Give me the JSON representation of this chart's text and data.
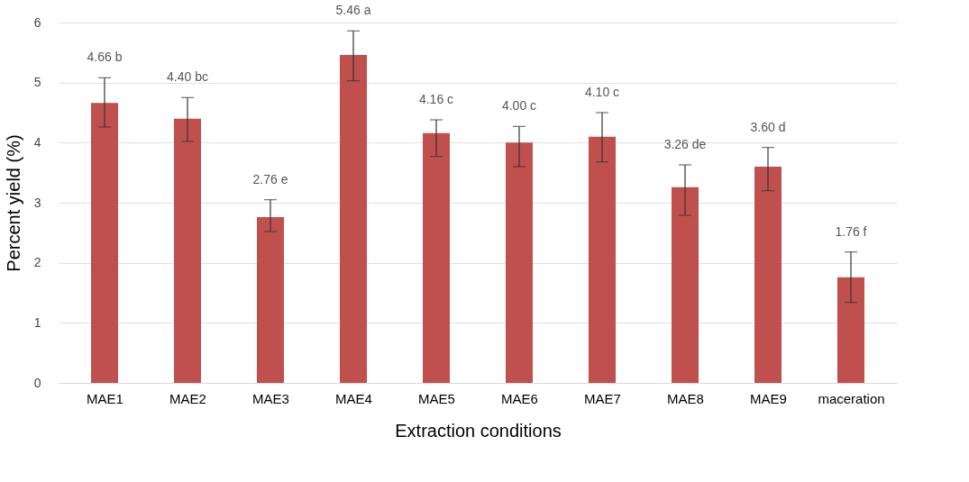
{
  "chart_data": {
    "type": "bar",
    "xlabel": "Extraction conditions",
    "ylabel": "Percent yield (%)",
    "categories": [
      "MAE1",
      "MAE2",
      "MAE3",
      "MAE4",
      "MAE5",
      "MAE6",
      "MAE7",
      "MAE8",
      "MAE9",
      "maceration"
    ],
    "values": [
      4.66,
      4.4,
      2.76,
      5.46,
      4.16,
      4.0,
      4.1,
      3.26,
      3.6,
      1.76
    ],
    "errors": [
      [
        4.26,
        5.08
      ],
      [
        4.02,
        4.75
      ],
      [
        2.52,
        3.05
      ],
      [
        5.03,
        5.86
      ],
      [
        3.77,
        4.38
      ],
      [
        3.6,
        4.27
      ],
      [
        3.68,
        4.5
      ],
      [
        2.79,
        3.63
      ],
      [
        3.2,
        3.92
      ],
      [
        1.34,
        2.18
      ]
    ],
    "value_labels": [
      "4.66 b",
      "4.40 bc",
      "2.76 e",
      "5.46 a",
      "4.16 c",
      "4.00 c",
      "4.10 c",
      "3.26 de",
      "3.60 d",
      "1.76 f"
    ],
    "color": "#c0504d",
    "ylim": [
      0,
      6
    ],
    "yticks": [
      0,
      1,
      2,
      3,
      4,
      5,
      6
    ],
    "grid": "y"
  }
}
